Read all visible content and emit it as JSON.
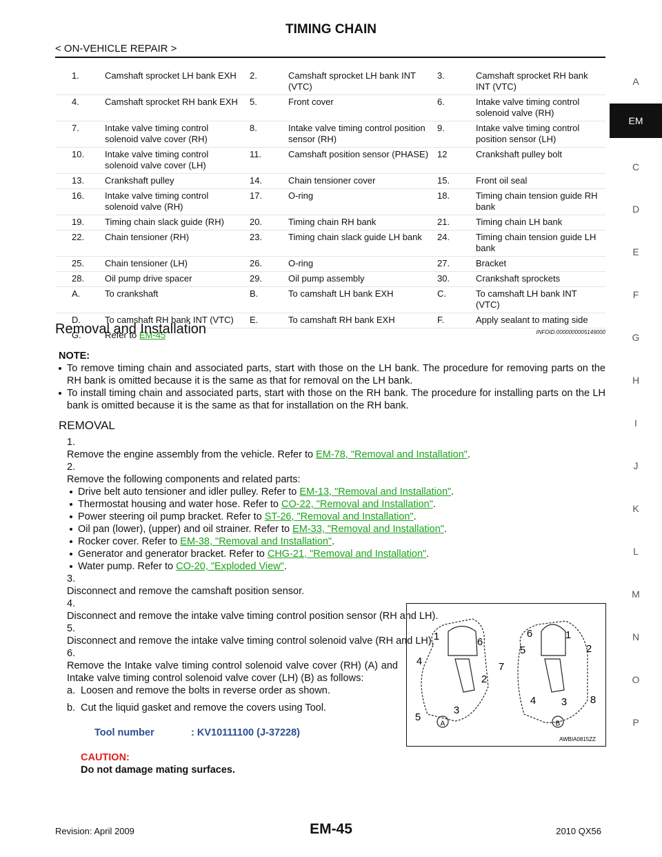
{
  "header": {
    "title": "TIMING CHAIN",
    "subtitle": "< ON-VEHICLE REPAIR >"
  },
  "side_tabs": [
    "A",
    "EM",
    "C",
    "D",
    "E",
    "F",
    "G",
    "H",
    "I",
    "J",
    "K",
    "L",
    "M",
    "N",
    "O",
    "P"
  ],
  "legend": {
    "rows": [
      [
        [
          "1.",
          "Camshaft sprocket LH bank EXH"
        ],
        [
          "2.",
          "Camshaft sprocket LH bank INT (VTC)"
        ],
        [
          "3.",
          "Camshaft sprocket RH bank INT (VTC)"
        ]
      ],
      [
        [
          "4.",
          "Camshaft sprocket RH bank EXH"
        ],
        [
          "5.",
          "Front cover"
        ],
        [
          "6.",
          "Intake valve timing control solenoid valve (RH)"
        ]
      ],
      [
        [
          "7.",
          "Intake valve timing control solenoid valve cover (RH)"
        ],
        [
          "8.",
          "Intake valve timing control position sensor (RH)"
        ],
        [
          "9.",
          "Intake valve timing control position sensor (LH)"
        ]
      ],
      [
        [
          "10.",
          "Intake valve timing control solenoid valve cover (LH)"
        ],
        [
          "11.",
          "Camshaft position sensor (PHASE)"
        ],
        [
          "12",
          "Crankshaft pulley bolt"
        ]
      ],
      [
        [
          "13.",
          "Crankshaft pulley"
        ],
        [
          "14.",
          "Chain tensioner cover"
        ],
        [
          "15.",
          "Front oil seal"
        ]
      ],
      [
        [
          "16.",
          "Intake valve timing control solenoid valve (RH)"
        ],
        [
          "17.",
          "O-ring"
        ],
        [
          "18.",
          "Timing chain tension guide RH bank"
        ]
      ],
      [
        [
          "19.",
          "Timing chain slack guide (RH)"
        ],
        [
          "20.",
          "Timing chain RH bank"
        ],
        [
          "21.",
          "Timing chain LH bank"
        ]
      ],
      [
        [
          "22.",
          "Chain tensioner (RH)"
        ],
        [
          "23.",
          "Timing chain slack guide LH bank"
        ],
        [
          "24.",
          "Timing chain tension guide LH bank"
        ]
      ],
      [
        [
          "25.",
          "Chain tensioner (LH)"
        ],
        [
          "26.",
          "O-ring"
        ],
        [
          "27.",
          "Bracket"
        ]
      ],
      [
        [
          "28.",
          "Oil pump drive spacer"
        ],
        [
          "29.",
          "Oil pump assembly"
        ],
        [
          "30.",
          "Crankshaft sprockets"
        ]
      ],
      [
        [
          "A.",
          "To crankshaft"
        ],
        [
          "B.",
          "To camshaft LH bank EXH"
        ],
        [
          "C.",
          "To camshaft LH bank INT (VTC)"
        ]
      ],
      [
        [
          "D.",
          "To camshaft RH bank INT (VTC)"
        ],
        [
          "E.",
          "To camshaft RH bank EXH"
        ],
        [
          "F.",
          "Apply sealant to mating side"
        ]
      ]
    ],
    "last": {
      "num": "G.",
      "text": "Refer to ",
      "link": "EM-45"
    }
  },
  "section": {
    "title": "Removal and Installation",
    "infoid": "INFOID:0000000005149000"
  },
  "note": {
    "label": "NOTE:",
    "items": [
      "To remove timing chain and associated parts, start with those on the LH bank. The procedure for removing parts on the RH bank is omitted because it is the same as that for removal on the LH bank.",
      "To install timing chain and associated parts, start with those on the RH bank. The procedure for installing parts on the LH bank is omitted because it is the same as that for installation on the RH bank."
    ]
  },
  "removal": {
    "heading": "REMOVAL",
    "steps": [
      {
        "num": "1.",
        "text": "Remove the engine assembly from the vehicle. Refer to ",
        "link": "EM-78, \"Removal and Installation\"",
        "end": "."
      },
      {
        "num": "2.",
        "text": "Remove the following components and related parts:",
        "items": [
          {
            "text": "Drive belt auto tensioner and idler pulley. Refer to ",
            "link": "EM-13, \"Removal and Installation\"",
            "end": "."
          },
          {
            "text": "Thermostat housing and water hose. Refer to ",
            "link": "CO-22, \"Removal and Installation\"",
            "end": "."
          },
          {
            "text": "Power steering oil pump bracket. Refer to ",
            "link": "ST-26, \"Removal and Installation\"",
            "end": "."
          },
          {
            "text": "Oil pan (lower), (upper) and oil strainer. Refer to ",
            "link": "EM-33, \"Removal and Installation\"",
            "end": "."
          },
          {
            "text": "Rocker cover. Refer to ",
            "link": "EM-38, \"Removal and Installation\"",
            "end": "."
          },
          {
            "text": "Generator and generator bracket. Refer to ",
            "link": "CHG-21, \"Removal and Installation\"",
            "end": "."
          },
          {
            "text": "Water pump. Refer to ",
            "link": "CO-20, \"Exploded View\"",
            "end": "."
          }
        ]
      },
      {
        "num": "3.",
        "text": "Disconnect and remove the camshaft position sensor."
      },
      {
        "num": "4.",
        "text": "Disconnect and remove the intake valve timing control position sensor (RH and LH)."
      },
      {
        "num": "5.",
        "text": "Disconnect and remove the intake valve timing control solenoid valve (RH and LH)."
      },
      {
        "num": "6.",
        "text": "Remove the Intake valve timing control solenoid valve cover (RH) (A) and Intake valve timing control solenoid valve cover (LH) (B) as follows:"
      }
    ],
    "substeps": [
      {
        "num": "a.",
        "text": "Loosen and remove the bolts in reverse order as shown."
      },
      {
        "num": "b.",
        "text": "Cut the liquid gasket and remove the covers using Tool."
      }
    ],
    "tool": {
      "label": "Tool number",
      "value": ": KV10111100 (J-37228)"
    },
    "caution": {
      "label": "CAUTION:",
      "text": "Do not damage mating surfaces."
    }
  },
  "figure": {
    "labels": [
      "1",
      "6",
      "4",
      "2",
      "5",
      "3",
      "A",
      "6",
      "1",
      "5",
      "2",
      "7",
      "4",
      "3",
      "8",
      "B"
    ],
    "code": "AWBIA0815ZZ"
  },
  "footer": {
    "revision": "Revision: April 2009",
    "page": "EM-45",
    "model": "2010 QX56"
  }
}
